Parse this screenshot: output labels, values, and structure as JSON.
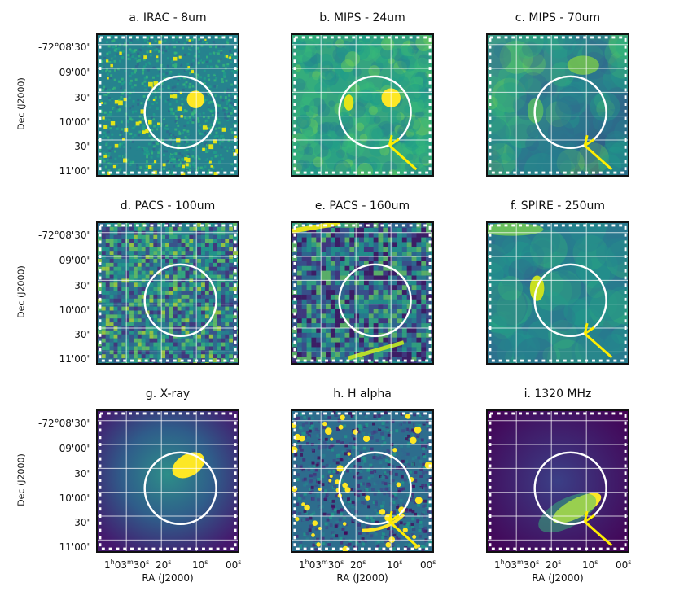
{
  "panels": [
    {
      "id": "a",
      "title": "a. IRAC - 8um",
      "style": "irac",
      "arrow": false
    },
    {
      "id": "b",
      "title": "b. MIPS - 24um",
      "style": "mips24",
      "arrow": true
    },
    {
      "id": "c",
      "title": "c. MIPS - 70um",
      "style": "mips70",
      "arrow": true
    },
    {
      "id": "d",
      "title": "d. PACS - 100um",
      "style": "pacs100",
      "arrow": false
    },
    {
      "id": "e",
      "title": "e. PACS - 160um",
      "style": "pacs160",
      "arrow": false
    },
    {
      "id": "f",
      "title": "f. SPIRE - 250um",
      "style": "spire",
      "arrow": true
    },
    {
      "id": "g",
      "title": "g. X-ray",
      "style": "xray",
      "arrow": false
    },
    {
      "id": "h",
      "title": "h. H alpha",
      "style": "halpha",
      "arrow": true
    },
    {
      "id": "i",
      "title": "i. 1320 MHz",
      "style": "radio",
      "arrow": true
    }
  ],
  "axes": {
    "ylabel": "Dec (J2000)",
    "xlabel": "RA (J2000)",
    "yticks": [
      "-72°08'30\"",
      "09'00\"",
      "30\"",
      "10'00\"",
      "30\"",
      "11'00\""
    ],
    "xticks": {
      "first_hours": "1",
      "first_minutes": "03",
      "first_seconds": "30",
      "second": "20",
      "third": "10",
      "fourth": "00",
      "h_unit": "h",
      "m_unit": "m",
      "s_unit": "s"
    }
  },
  "colors": {
    "colormap": "viridis",
    "circle": "#ffffff",
    "arrow": "#ffee00",
    "grid": "#ffffff",
    "frame": "#111111"
  }
}
